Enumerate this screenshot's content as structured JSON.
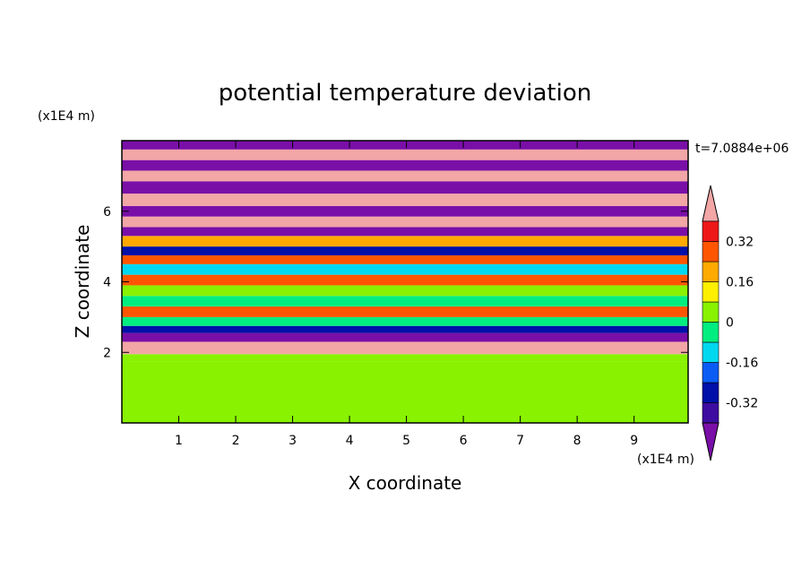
{
  "chart_data": {
    "type": "heatmap",
    "title": "potential temperature deviation",
    "xlabel": "X coordinate",
    "ylabel": "Z coordinate",
    "x_unit": "(x1E4 m)",
    "y_unit": "(x1E4 m)",
    "time_label": "t=7.0884e+06",
    "xlim": [
      0,
      9.95
    ],
    "ylim": [
      0,
      8.0
    ],
    "x_ticks": [
      "1",
      "2",
      "3",
      "4",
      "5",
      "6",
      "7",
      "8",
      "9"
    ],
    "y_ticks": [
      "2",
      "4",
      "6"
    ],
    "colorbar": {
      "labels": [
        "0.32",
        "0.16",
        "0",
        "-0.16",
        "-0.32"
      ],
      "label_values": [
        0.32,
        0.16,
        0,
        -0.16,
        -0.32
      ],
      "levels": [
        -0.4,
        -0.32,
        -0.24,
        -0.16,
        -0.08,
        0,
        0.08,
        0.16,
        0.24,
        0.32,
        0.4
      ],
      "under_color": "#7a0fa8",
      "over_color": "#f2a6a6",
      "colors": [
        "#3d0ca0",
        "#0010a8",
        "#0a5cf5",
        "#00d8f0",
        "#00ee80",
        "#88f200",
        "#fff000",
        "#ffaa00",
        "#ff5500",
        "#ee1818"
      ]
    },
    "bands": [
      {
        "z": 0.0,
        "value": 0.05
      },
      {
        "z": 1.75,
        "value": 0.05
      },
      {
        "z": 1.95,
        "value": 0.5
      },
      {
        "z": 2.3,
        "value": -0.45
      },
      {
        "z": 2.55,
        "value": -0.3
      },
      {
        "z": 2.75,
        "value": -0.05
      },
      {
        "z": 3.0,
        "value": 0.25
      },
      {
        "z": 3.3,
        "value": -0.05
      },
      {
        "z": 3.6,
        "value": 0.05
      },
      {
        "z": 3.9,
        "value": 0.28
      },
      {
        "z": 4.2,
        "value": -0.1
      },
      {
        "z": 4.5,
        "value": 0.3
      },
      {
        "z": 4.75,
        "value": -0.25
      },
      {
        "z": 5.0,
        "value": 0.2
      },
      {
        "z": 5.3,
        "value": -0.45
      },
      {
        "z": 5.55,
        "value": 0.5
      },
      {
        "z": 5.85,
        "value": -0.45
      },
      {
        "z": 6.15,
        "value": 0.5
      },
      {
        "z": 6.5,
        "value": -0.45
      },
      {
        "z": 6.85,
        "value": 0.5
      },
      {
        "z": 7.15,
        "value": -0.45
      },
      {
        "z": 7.45,
        "value": 0.5
      },
      {
        "z": 7.75,
        "value": -0.45
      },
      {
        "z": 8.0,
        "value": -0.45
      }
    ]
  }
}
